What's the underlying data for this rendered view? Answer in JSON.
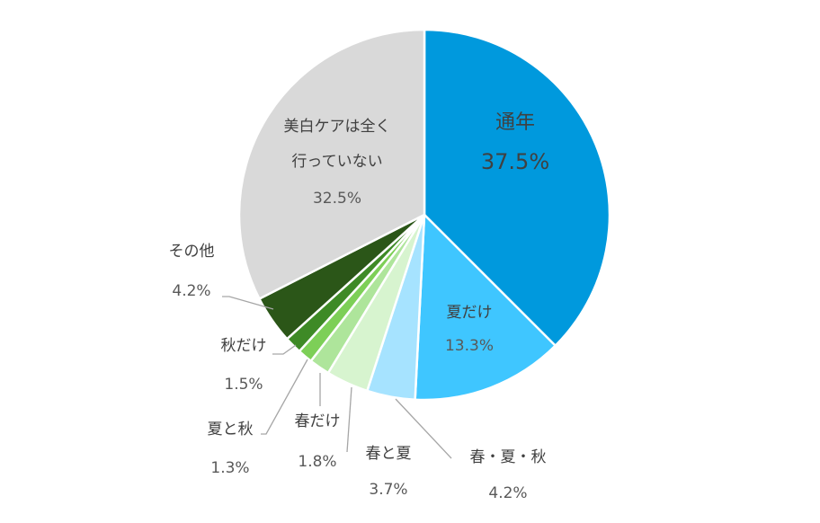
{
  "chart_data": {
    "type": "pie",
    "title": "",
    "start_angle_deg": 0,
    "direction": "clockwise",
    "slices": [
      {
        "label": "通年",
        "value": 37.5,
        "value_label": "37.5%",
        "color": "#0099dd"
      },
      {
        "label": "夏だけ",
        "value": 13.3,
        "value_label": "13.3%",
        "color": "#3fc6ff"
      },
      {
        "label": "春・夏・秋",
        "value": 4.2,
        "value_label": "4.2%",
        "color": "#a6e3ff"
      },
      {
        "label": "春と夏",
        "value": 3.7,
        "value_label": "3.7%",
        "color": "#d7f4cf"
      },
      {
        "label": "春だけ",
        "value": 1.8,
        "value_label": "1.8%",
        "color": "#aee59b"
      },
      {
        "label": "夏と秋",
        "value": 1.3,
        "value_label": "1.3%",
        "color": "#7dcf57"
      },
      {
        "label": "秋だけ",
        "value": 1.5,
        "value_label": "1.5%",
        "color": "#3e8a26"
      },
      {
        "label": "その他",
        "value": 4.2,
        "value_label": "4.2%",
        "color": "#2b5618"
      },
      {
        "label": "美白ケアは全く\n行っていない",
        "value": 32.5,
        "value_label": "32.5%",
        "color": "#d9d9d9"
      }
    ]
  }
}
